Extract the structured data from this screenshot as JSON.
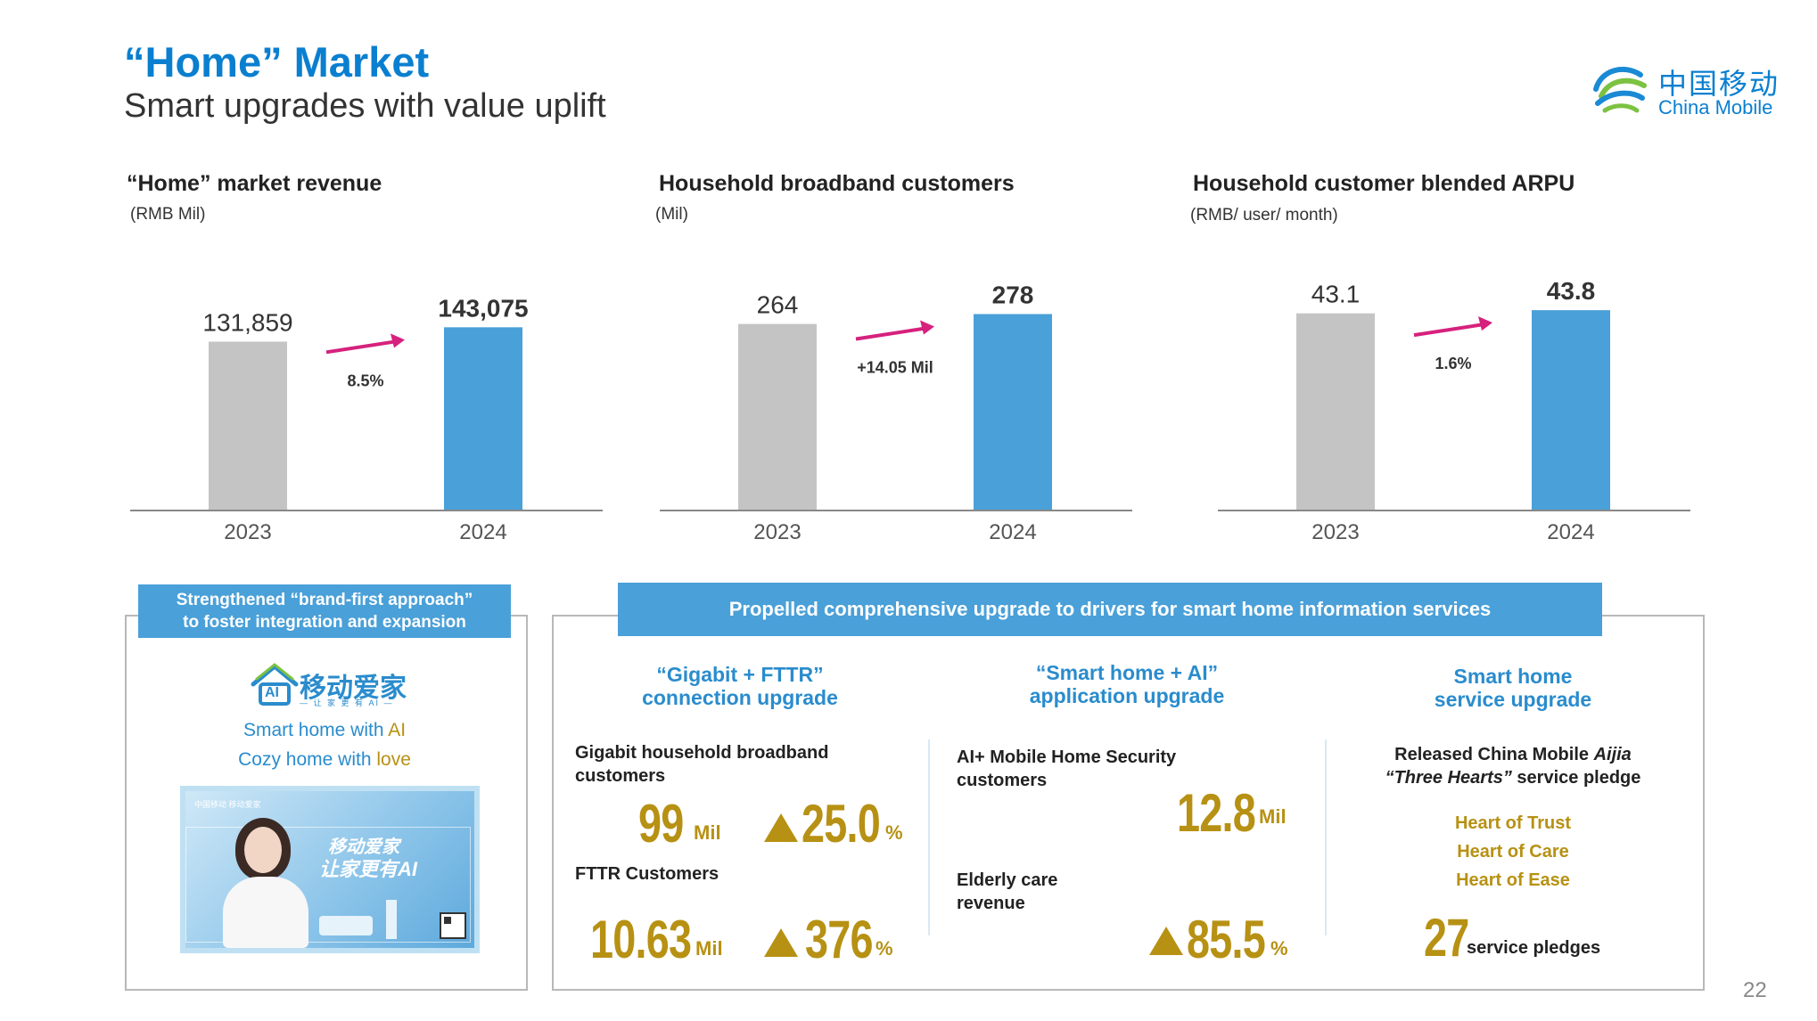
{
  "header": {
    "title": "“Home” Market",
    "subtitle": "Smart upgrades with value uplift"
  },
  "logo": {
    "cn": "中国移动",
    "en": "China Mobile"
  },
  "colors": {
    "brand_blue": "#0a7fd0",
    "bar_2023": "#c4c4c4",
    "bar_2024": "#4aa0d8",
    "arrow": "#d6217d",
    "gold": "#b79113"
  },
  "chart_data": [
    {
      "type": "bar",
      "title": "“Home” market revenue",
      "unit": "(RMB Mil)",
      "categories": [
        "2023",
        "2024"
      ],
      "values": [
        131859,
        143075
      ],
      "value_labels": [
        "131,859",
        "143,075"
      ],
      "growth_label": "8.5%",
      "ylim": [
        0,
        160000
      ]
    },
    {
      "type": "bar",
      "title": "Household broadband customers",
      "unit": "(Mil)",
      "categories": [
        "2023",
        "2024"
      ],
      "values": [
        264,
        278
      ],
      "value_labels": [
        "264",
        "278"
      ],
      "growth_label": "+14.05 Mil",
      "ylim": [
        0,
        290
      ]
    },
    {
      "type": "bar",
      "title": "Household customer blended ARPU",
      "unit": "(RMB/ user/ month)",
      "categories": [
        "2023",
        "2024"
      ],
      "values": [
        43.1,
        43.8
      ],
      "value_labels": [
        "43.1",
        "43.8"
      ],
      "growth_label": "1.6%",
      "ylim": [
        0,
        44.8
      ]
    }
  ],
  "brand_panel": {
    "header": [
      "Strengthened “brand-first approach”",
      "to foster integration and expansion"
    ],
    "brand_name": "移动爱家",
    "brand_tagline": "— 让 家 更 有 AI —",
    "logo_text": "AI",
    "line1_prefix": "Smart home with ",
    "line1_highlight": "AI",
    "line2_prefix": "Cozy home with ",
    "line2_highlight": "love",
    "ad": {
      "cn_title": "移动爱家",
      "cn_slogan": "让家更有AI",
      "corner_logos": "中国移动 移动爱家"
    }
  },
  "drivers": {
    "header": "Propelled comprehensive upgrade to drivers for smart home information services",
    "gigabit": {
      "head": [
        "“Gigabit + FTTR”",
        "connection upgrade"
      ],
      "label1": [
        "Gigabit household broadband",
        "customers"
      ],
      "value1": "99",
      "unit1": "Mil",
      "growth1": "25.0",
      "growth1_unit": "%",
      "label2": "FTTR Customers",
      "value2": "10.63",
      "unit2": "Mil",
      "growth2": "376",
      "growth2_unit": "%"
    },
    "ai": {
      "head": [
        "“Smart home + AI”",
        "application upgrade"
      ],
      "label1": [
        "AI+ Mobile Home Security",
        "customers"
      ],
      "value1": "12.8",
      "unit1": "Mil",
      "label2": [
        "Elderly care",
        "revenue"
      ],
      "growth2": "85.5",
      "growth2_unit": "%"
    },
    "service": {
      "head": [
        "Smart home",
        "service upgrade"
      ],
      "desc_line1_prefix": "Released China Mobile ",
      "desc_line1_italic": "Aijia",
      "desc_line2_italic": "“Three Hearts”",
      "desc_line2_suffix": " service pledge",
      "hearts": [
        "Heart of Trust",
        "Heart of Care",
        "Heart of Ease"
      ],
      "pledges_value": "27",
      "pledges_label": "service pledges"
    }
  },
  "page_number": "22"
}
